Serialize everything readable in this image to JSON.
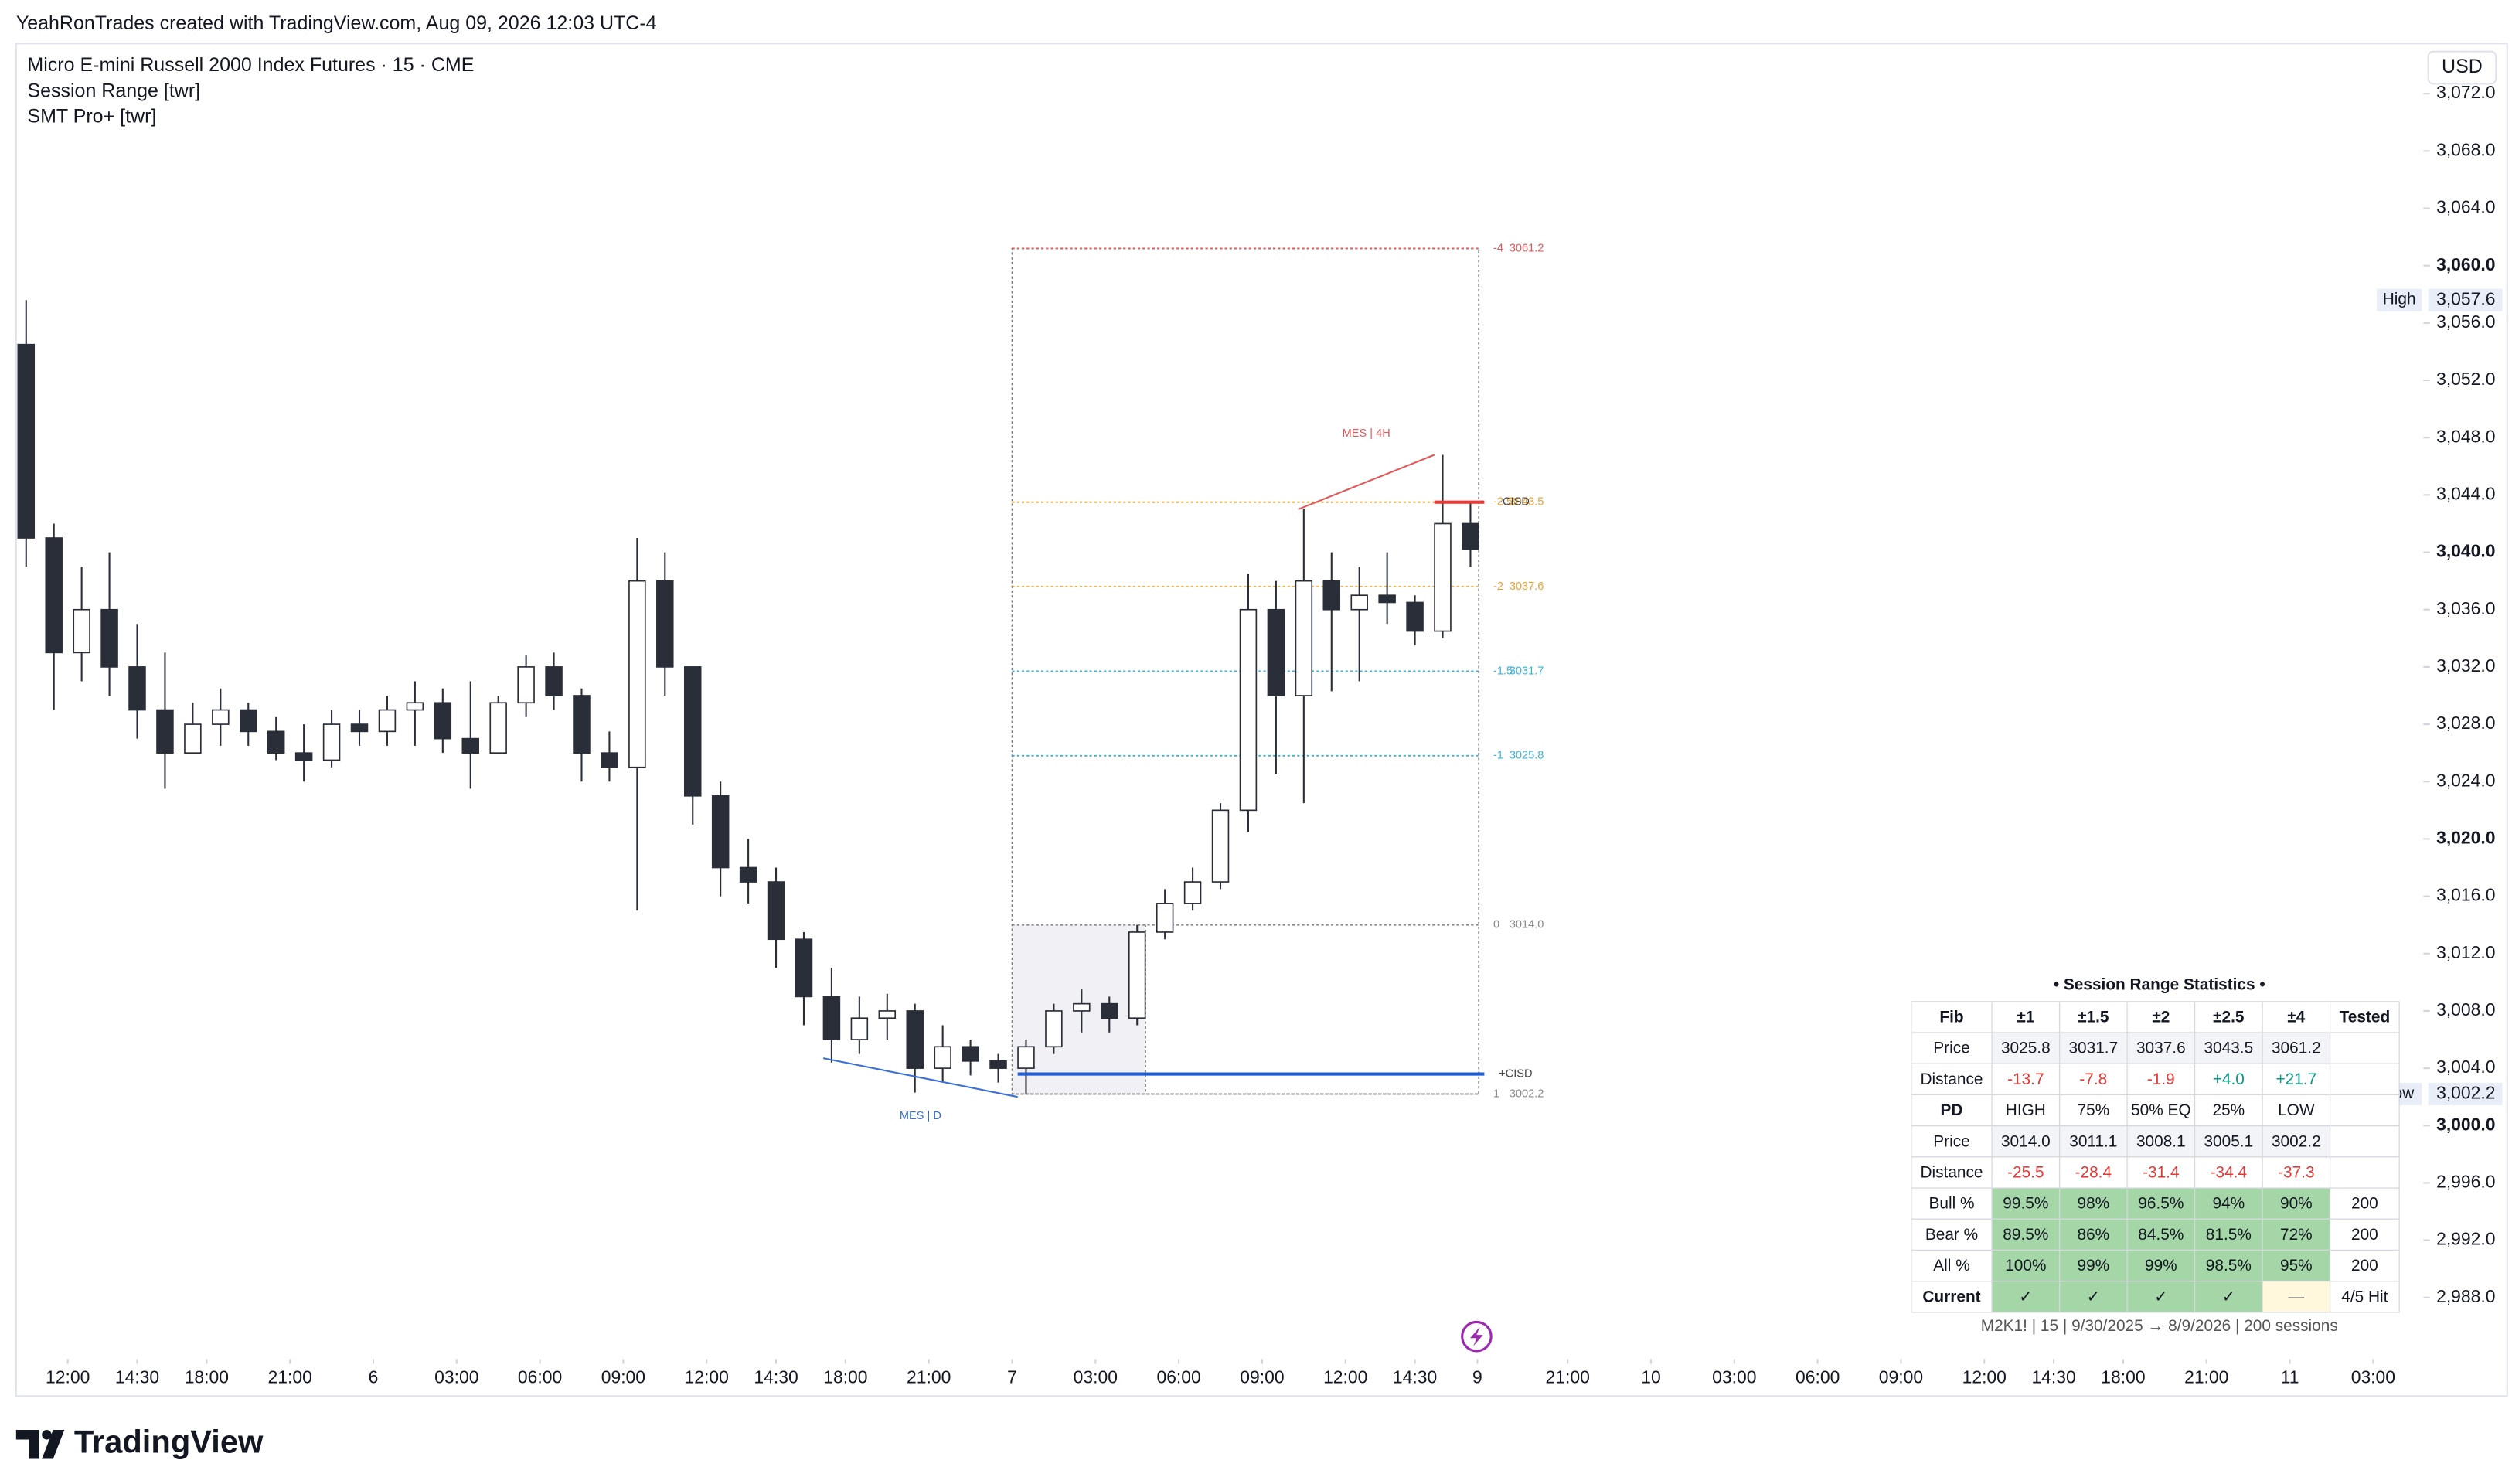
{
  "header": {
    "credit": "YeahRonTrades created with TradingView.com, Aug 09, 2026 12:03 UTC-4"
  },
  "legend": {
    "symbol": "Micro E-mini Russell 2000 Index Futures · 15 · CME",
    "indicators": [
      "Session Range [twr]",
      "SMT Pro+ [twr]"
    ]
  },
  "currency": "USD",
  "chart_data": {
    "type": "candlestick",
    "up_color": "#ffffff",
    "down_color": "#2a2e39",
    "outline_color": "#2a2e39",
    "grid": false,
    "x": [
      -1.5,
      -0.5,
      0.5,
      1.5,
      2.5,
      3.5,
      4.5,
      5.5,
      6.5,
      7.5,
      8.5,
      9.5,
      10.5,
      11.5,
      12.5,
      13.5,
      14.5,
      15.5,
      16.5,
      17.5,
      18.5,
      19.5,
      20.5,
      21.5,
      22.5,
      23.5,
      24.5,
      25.5,
      26.5,
      27.5,
      28.5,
      29.5,
      30.5,
      31.5,
      32.5,
      33.5,
      34.5,
      35.5,
      36.5,
      37.5,
      38.5,
      39.5,
      40.5,
      41.5,
      42.5,
      43.5,
      44.5,
      45.5,
      46.5,
      47.5,
      48.5,
      49.5,
      50.5
    ],
    "open": [
      3054.5,
      3041,
      3033,
      3036,
      3032,
      3029,
      3026,
      3028,
      3029,
      3027.5,
      3026,
      3025.5,
      3028,
      3027.5,
      3029,
      3029.5,
      3027,
      3026,
      3029.5,
      3032,
      3030,
      3026,
      3025,
      3038,
      3032,
      3023,
      3018,
      3017,
      3013,
      3009,
      3006,
      3007.5,
      3008,
      3004,
      3005.5,
      3004.5,
      3004,
      3005.5,
      3008,
      3008.5,
      3007.5,
      3013.5,
      3015.5,
      3017,
      3022,
      3036,
      3030,
      3038,
      3036,
      3037,
      3036.5,
      3034.5,
      3042
    ],
    "high": [
      3057.6,
      3042,
      3039,
      3040,
      3035,
      3033,
      3029.5,
      3030.5,
      3029.5,
      3028.5,
      3028,
      3029,
      3029,
      3030,
      3031,
      3030.5,
      3031,
      3030,
      3032.8,
      3033,
      3030.5,
      3027.5,
      3041,
      3040,
      3032,
      3024,
      3020,
      3018,
      3013.5,
      3011,
      3009,
      3009.2,
      3008.5,
      3007,
      3006,
      3005,
      3006,
      3008.5,
      3009.5,
      3009,
      3014,
      3016.5,
      3018,
      3022.5,
      3038.5,
      3038,
      3043,
      3040,
      3039,
      3040,
      3037,
      3046.8,
      3043.5
    ],
    "low": [
      3039,
      3029,
      3031,
      3030,
      3027,
      3023.5,
      3026,
      3026.5,
      3026.5,
      3025.5,
      3024,
      3025,
      3026.5,
      3026.5,
      3026.5,
      3026,
      3023.5,
      3026,
      3028.5,
      3029,
      3024,
      3024,
      3015,
      3030,
      3021,
      3016,
      3015.5,
      3011,
      3007,
      3004.4,
      3005,
      3006,
      3002.3,
      3003,
      3003.5,
      3003,
      3002.2,
      3005,
      3006.5,
      3006.5,
      3007,
      3013,
      3015,
      3016.5,
      3020.5,
      3024.5,
      3022.5,
      3030.3,
      3031,
      3035,
      3033.5,
      3034,
      3039
    ],
    "close": [
      3041,
      3033,
      3036,
      3032,
      3029,
      3026,
      3028,
      3029,
      3027.5,
      3026,
      3025.5,
      3028,
      3027.5,
      3029,
      3029.5,
      3027,
      3026,
      3029.5,
      3032,
      3030,
      3026,
      3025,
      3038,
      3032,
      3023,
      3018,
      3017,
      3013,
      3009,
      3006,
      3007.5,
      3008,
      3004,
      3005.5,
      3004.5,
      3004,
      3005.5,
      3008,
      3008.5,
      3007.5,
      3013.5,
      3015.5,
      3017,
      3022,
      3036,
      3030,
      3038,
      3036,
      3037,
      3036.5,
      3034.5,
      3042,
      3040.2
    ],
    "xlim": [
      -1.86,
      84.81
    ],
    "ylim": [
      2984.16,
      3075.39
    ],
    "xticks": [
      {
        "value": 0,
        "label": "12:00"
      },
      {
        "value": 2.5,
        "label": "14:30"
      },
      {
        "value": 5,
        "label": "18:00"
      },
      {
        "value": 8,
        "label": "21:00"
      },
      {
        "value": 11,
        "label": "6"
      },
      {
        "value": 14,
        "label": "03:00"
      },
      {
        "value": 17,
        "label": "06:00"
      },
      {
        "value": 20,
        "label": "09:00"
      },
      {
        "value": 23,
        "label": "12:00"
      },
      {
        "value": 25.5,
        "label": "14:30"
      },
      {
        "value": 28,
        "label": "18:00"
      },
      {
        "value": 31,
        "label": "21:00"
      },
      {
        "value": 34,
        "label": "7"
      },
      {
        "value": 37,
        "label": "03:00"
      },
      {
        "value": 40,
        "label": "06:00"
      },
      {
        "value": 43,
        "label": "09:00"
      },
      {
        "value": 46,
        "label": "12:00"
      },
      {
        "value": 48.5,
        "label": "14:30"
      },
      {
        "value": 50.75,
        "label": "9"
      },
      {
        "value": 54,
        "label": "21:00"
      },
      {
        "value": 57,
        "label": "10"
      },
      {
        "value": 60,
        "label": "03:00"
      },
      {
        "value": 63,
        "label": "06:00"
      },
      {
        "value": 66,
        "label": "09:00"
      },
      {
        "value": 69,
        "label": "12:00"
      },
      {
        "value": 71.5,
        "label": "14:30"
      },
      {
        "value": 74,
        "label": "18:00"
      },
      {
        "value": 77,
        "label": "21:00"
      },
      {
        "value": 80,
        "label": "11"
      },
      {
        "value": 83,
        "label": "03:00"
      }
    ],
    "yticks": [
      {
        "value": 2988,
        "label": "2,988.0"
      },
      {
        "value": 2992,
        "label": "2,992.0"
      },
      {
        "value": 2996,
        "label": "2,996.0"
      },
      {
        "value": 3000,
        "label": "3,000.0"
      },
      {
        "value": 3004,
        "label": "3,004.0"
      },
      {
        "value": 3008,
        "label": "3,008.0"
      },
      {
        "value": 3012,
        "label": "3,012.0"
      },
      {
        "value": 3016,
        "label": "3,016.0"
      },
      {
        "value": 3020,
        "label": "3,020.0"
      },
      {
        "value": 3024,
        "label": "3,024.0"
      },
      {
        "value": 3028,
        "label": "3,028.0"
      },
      {
        "value": 3032,
        "label": "3,032.0"
      },
      {
        "value": 3036,
        "label": "3,036.0"
      },
      {
        "value": 3040,
        "label": "3,040.0"
      },
      {
        "value": 3044,
        "label": "3,044.0"
      },
      {
        "value": 3048,
        "label": "3,048.0"
      },
      {
        "value": 3052,
        "label": "3,052.0"
      },
      {
        "value": 3056,
        "label": "3,056.0"
      },
      {
        "value": 3060,
        "label": "3,060.0"
      },
      {
        "value": 3064,
        "label": "3,064.0"
      },
      {
        "value": 3068,
        "label": "3,068.0"
      },
      {
        "value": 3072,
        "label": "3,072.0"
      }
    ],
    "markers": [
      {
        "name": "High",
        "value": 3057.6,
        "label": "3,057.6"
      },
      {
        "name": "Low",
        "value": 3002.2,
        "label": "3,002.2"
      }
    ],
    "session_range": {
      "start": 34,
      "end": 50.8,
      "shade_end": 38.8
    },
    "levels": [
      {
        "tag": "-4",
        "value": 3061.2,
        "label": "3061.2",
        "color": "#e05a5a"
      },
      {
        "tag": "-2.5",
        "value": 3043.5,
        "label": "3043.5",
        "color": "#f0a030"
      },
      {
        "tag": "-2",
        "value": 3037.6,
        "label": "3037.6",
        "color": "#f0a030"
      },
      {
        "tag": "-1.5",
        "value": 3031.7,
        "label": "3031.7",
        "color": "#3bb3d9"
      },
      {
        "tag": "-1",
        "value": 3025.8,
        "label": "3025.8",
        "color": "#3bb3d9"
      },
      {
        "tag": "0",
        "value": 3014.0,
        "label": "3014.0",
        "color": "#888888"
      },
      {
        "tag": "1",
        "value": 3002.2,
        "label": "3002.2",
        "color": "#888888"
      }
    ],
    "cisd": [
      {
        "label": "+CISD",
        "value": 3003.6,
        "x": [
          34.2,
          51
        ],
        "color": "#1e5bd6"
      },
      {
        "label": "-CISD",
        "value": 3043.5,
        "x": [
          49.2,
          51
        ],
        "color": "#e53935"
      }
    ],
    "smt": [
      {
        "label": "MES | 4H",
        "x": [
          44.3,
          49.2
        ],
        "y": [
          3043,
          3046.8
        ],
        "color": "#e05a5a"
      },
      {
        "label": "MES | D",
        "x": [
          27.2,
          34.2
        ],
        "y": [
          3004.7,
          3002
        ],
        "color": "#3a6fd8"
      }
    ]
  },
  "table": {
    "title": "• Session Range Statistics •",
    "rows": [
      [
        "Fib",
        "±1",
        "±1.5",
        "±2",
        "±2.5",
        "±4",
        "Tested"
      ],
      [
        "Price",
        "3025.8",
        "3031.7",
        "3037.6",
        "3043.5",
        "3061.2",
        null
      ],
      [
        "Distance",
        "-13.7",
        "-7.8",
        "-1.9",
        "+4.0",
        "+21.7",
        null
      ],
      [
        "PD",
        "HIGH",
        "75%",
        "50% EQ",
        "25%",
        "LOW",
        null
      ],
      [
        "Price",
        "3014.0",
        "3011.1",
        "3008.1",
        "3005.1",
        "3002.2",
        null
      ],
      [
        "Distance",
        "-25.5",
        "-28.4",
        "-31.4",
        "-34.4",
        "-37.3",
        null
      ],
      [
        "Bull %",
        "99.5%",
        "98%",
        "96.5%",
        "94%",
        "90%",
        "200"
      ],
      [
        "Bear %",
        "89.5%",
        "86%",
        "84.5%",
        "81.5%",
        "72%",
        "200"
      ],
      [
        "All %",
        "100%",
        "99%",
        "99%",
        "98.5%",
        "95%",
        "200"
      ],
      [
        "Current",
        "✓",
        "✓",
        "✓",
        "✓",
        "—",
        "4/5 Hit"
      ]
    ],
    "note": "M2K1! | 15 | 9/30/2025 → 8/9/2026 | 200 sessions"
  },
  "footer": {
    "brand": "TradingView"
  }
}
